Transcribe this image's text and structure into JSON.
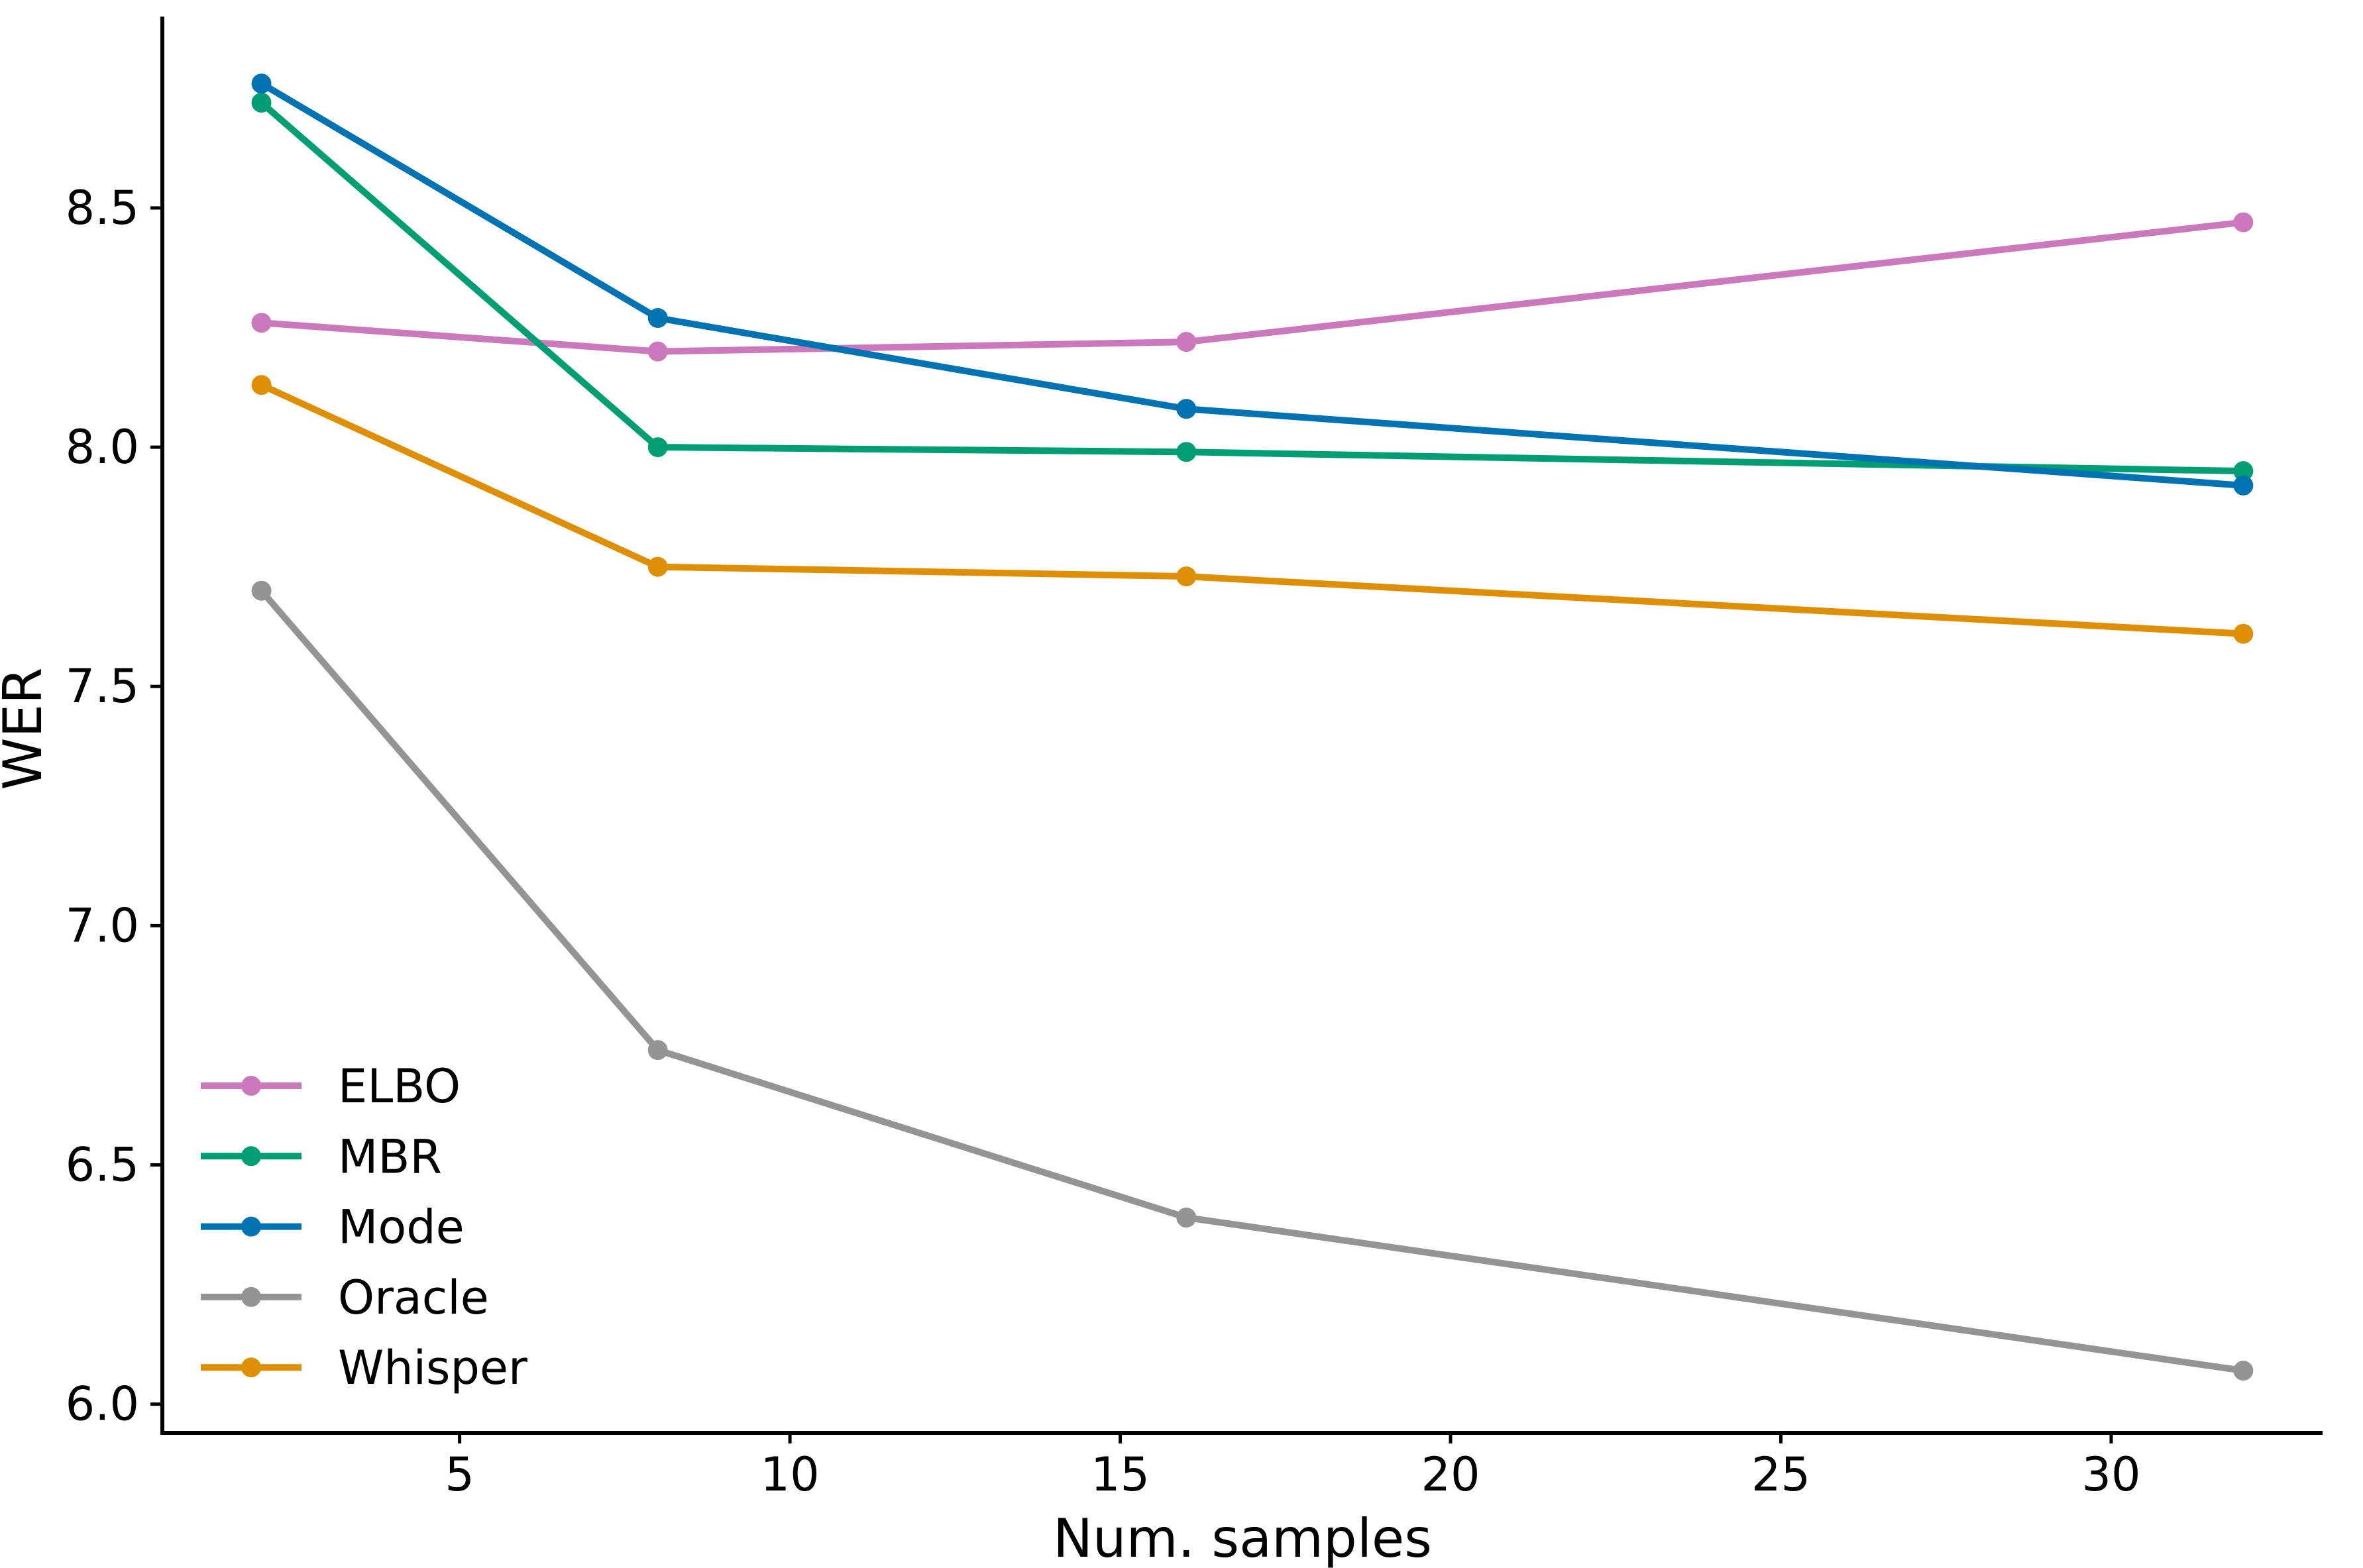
{
  "chart_data": {
    "type": "line",
    "title": "",
    "xlabel": "Num. samples",
    "ylabel": "WER",
    "x": [
      2,
      8,
      16,
      32
    ],
    "series": [
      {
        "name": "ELBO",
        "color": "#cc78bc",
        "values": [
          8.26,
          8.2,
          8.22,
          8.47
        ]
      },
      {
        "name": "MBR",
        "color": "#029e73",
        "values": [
          8.72,
          8.0,
          7.99,
          7.95
        ]
      },
      {
        "name": "Mode",
        "color": "#0173b2",
        "values": [
          8.76,
          8.27,
          8.08,
          7.92
        ]
      },
      {
        "name": "Oracle",
        "color": "#949494",
        "values": [
          7.7,
          6.74,
          6.39,
          6.07
        ]
      },
      {
        "name": "Whisper",
        "color": "#de8f05",
        "values": [
          8.13,
          7.75,
          7.73,
          7.61
        ]
      }
    ],
    "xticks": [
      {
        "value": 5,
        "label": "5"
      },
      {
        "value": 10,
        "label": "10"
      },
      {
        "value": 15,
        "label": "15"
      },
      {
        "value": 20,
        "label": "20"
      },
      {
        "value": 25,
        "label": "25"
      },
      {
        "value": 30,
        "label": "30"
      }
    ],
    "yticks": [
      {
        "value": 6.0,
        "label": "6.0"
      },
      {
        "value": 6.5,
        "label": "6.5"
      },
      {
        "value": 7.0,
        "label": "7.0"
      },
      {
        "value": 7.5,
        "label": "7.5"
      },
      {
        "value": 8.0,
        "label": "8.0"
      },
      {
        "value": 8.5,
        "label": "8.5"
      }
    ],
    "xlim": [
      0.5,
      33.2
    ],
    "ylim": [
      5.94,
      8.9
    ],
    "grid": false,
    "legend_position": "lower left",
    "marker": "circle",
    "axis_color": "#000000"
  }
}
